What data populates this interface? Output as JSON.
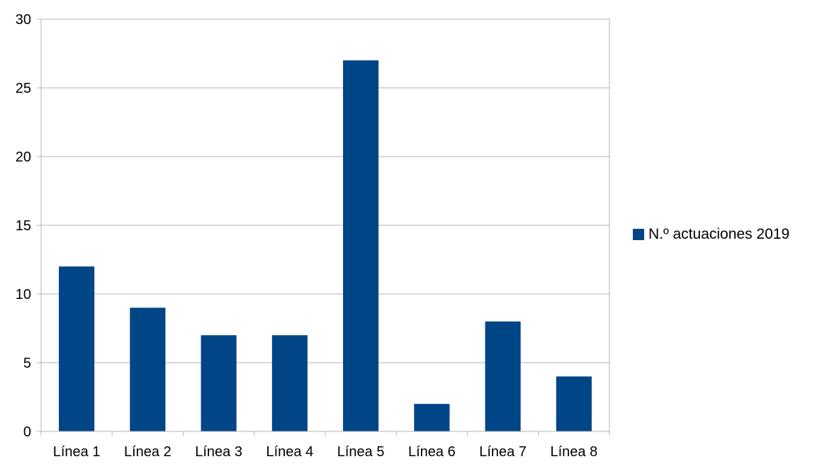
{
  "chart_data": {
    "type": "bar",
    "categories": [
      "Línea 1",
      "Línea 2",
      "Línea 3",
      "Línea 4",
      "Línea 5",
      "Línea 6",
      "Línea 7",
      "Línea 8"
    ],
    "series": [
      {
        "name": "N.º actuaciones 2019",
        "values": [
          12,
          9,
          7,
          7,
          27,
          2,
          8,
          4
        ],
        "color": "#004586"
      }
    ],
    "title": "",
    "xlabel": "",
    "ylabel": "",
    "ylim": [
      0,
      30
    ],
    "yticks": [
      0,
      5,
      10,
      15,
      20,
      25,
      30
    ],
    "grid": true,
    "legend_position": "right"
  }
}
